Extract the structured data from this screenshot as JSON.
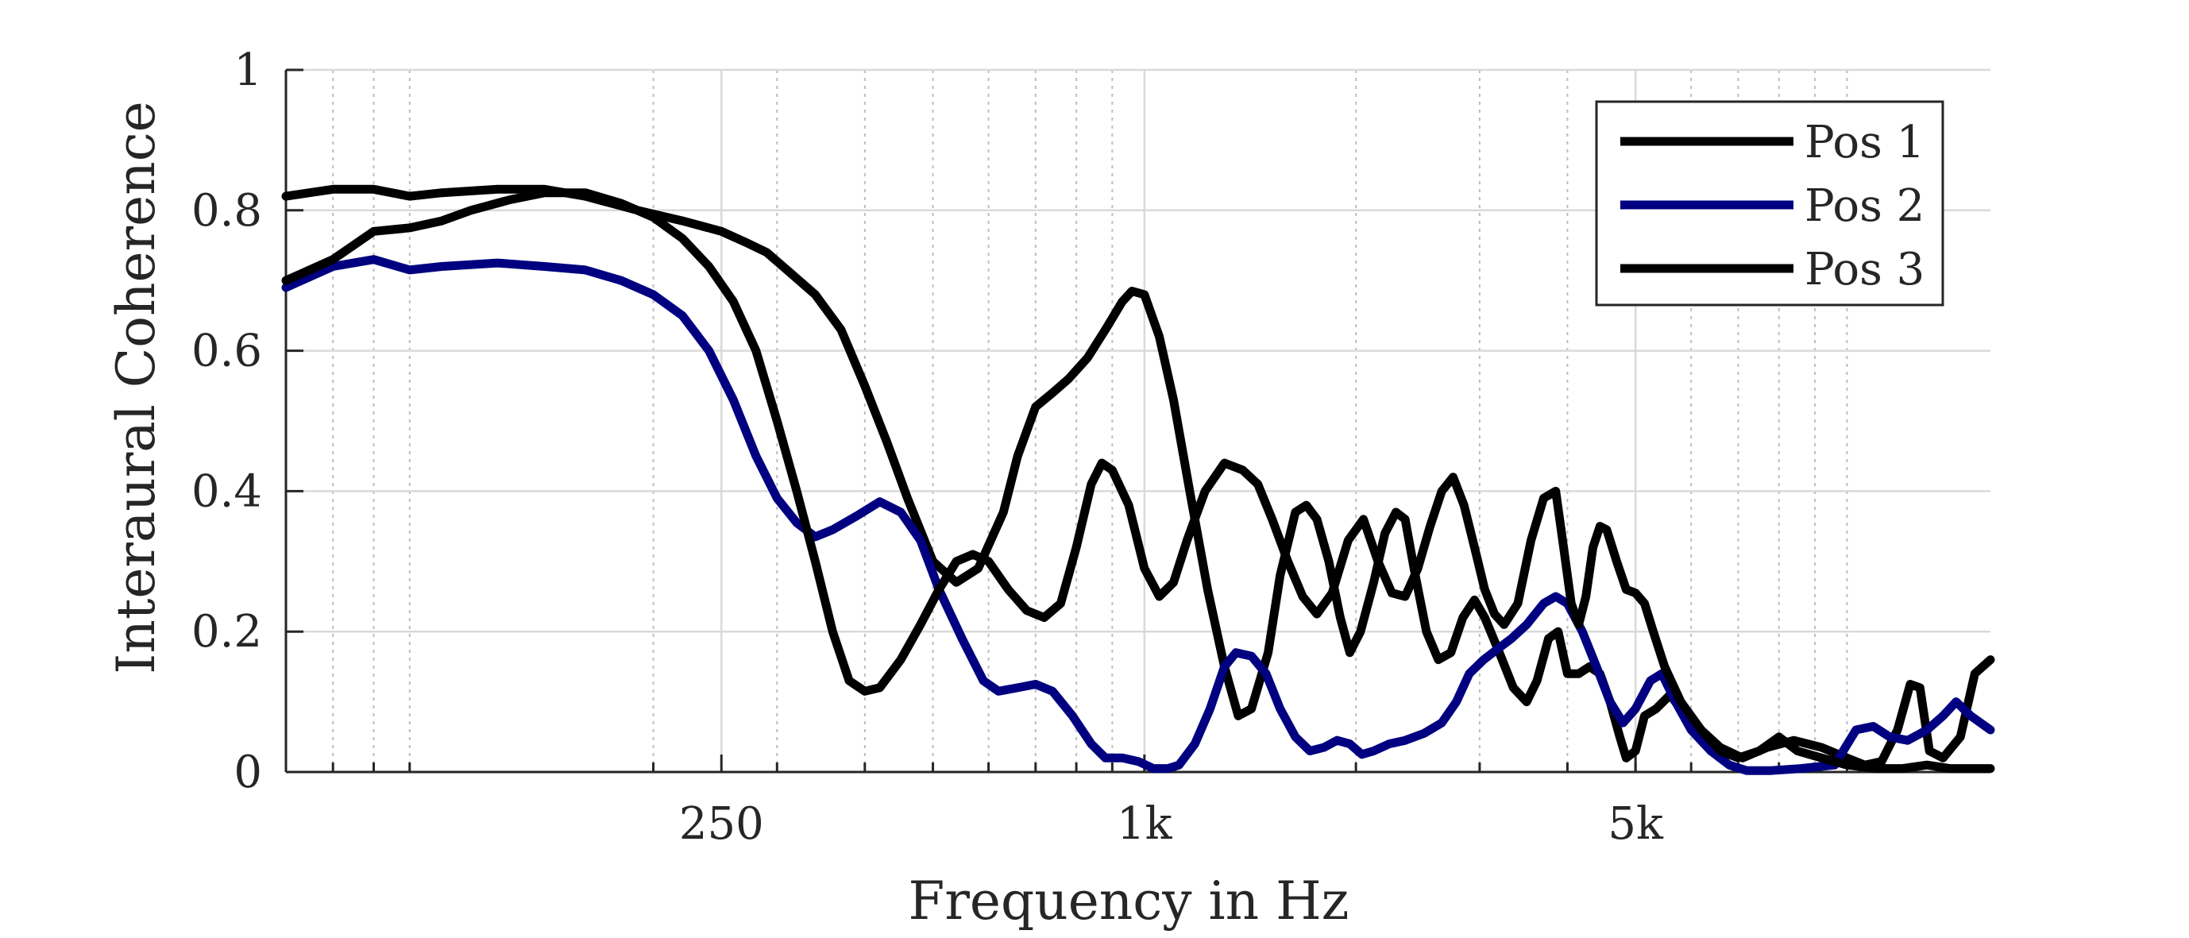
{
  "chart_data": {
    "type": "line",
    "xlabel": "Frequency in Hz",
    "ylabel": "Interaural Coherence",
    "xscale": "log",
    "xlim": [
      60,
      16000
    ],
    "ylim": [
      0,
      1
    ],
    "xticks": [
      250,
      1000,
      5000
    ],
    "xtick_labels": [
      "250",
      "1k",
      "5k"
    ],
    "yticks": [
      0,
      0.2,
      0.4,
      0.6,
      0.8,
      1
    ],
    "ytick_labels": [
      "0",
      "0.2",
      "0.4",
      "0.6",
      "0.8",
      "1"
    ],
    "grid": true,
    "legend_position": "top-right",
    "series": [
      {
        "name": "Pos 1",
        "color": "#000000",
        "points": [
          [
            60,
            0.82
          ],
          [
            70,
            0.83
          ],
          [
            80,
            0.83
          ],
          [
            90,
            0.82
          ],
          [
            100,
            0.825
          ],
          [
            120,
            0.83
          ],
          [
            140,
            0.83
          ],
          [
            160,
            0.82
          ],
          [
            190,
            0.8
          ],
          [
            220,
            0.785
          ],
          [
            250,
            0.77
          ],
          [
            270,
            0.755
          ],
          [
            290,
            0.74
          ],
          [
            310,
            0.715
          ],
          [
            340,
            0.68
          ],
          [
            370,
            0.63
          ],
          [
            400,
            0.55
          ],
          [
            430,
            0.47
          ],
          [
            460,
            0.39
          ],
          [
            500,
            0.3
          ],
          [
            540,
            0.27
          ],
          [
            580,
            0.29
          ],
          [
            630,
            0.37
          ],
          [
            660,
            0.45
          ],
          [
            700,
            0.52
          ],
          [
            740,
            0.54
          ],
          [
            780,
            0.56
          ],
          [
            830,
            0.59
          ],
          [
            880,
            0.63
          ],
          [
            930,
            0.67
          ],
          [
            960,
            0.685
          ],
          [
            1000,
            0.68
          ],
          [
            1050,
            0.62
          ],
          [
            1100,
            0.53
          ],
          [
            1160,
            0.4
          ],
          [
            1230,
            0.26
          ],
          [
            1300,
            0.15
          ],
          [
            1360,
            0.08
          ],
          [
            1420,
            0.09
          ],
          [
            1500,
            0.17
          ],
          [
            1560,
            0.28
          ],
          [
            1640,
            0.37
          ],
          [
            1700,
            0.38
          ],
          [
            1760,
            0.36
          ],
          [
            1830,
            0.3
          ],
          [
            1900,
            0.22
          ],
          [
            1960,
            0.17
          ],
          [
            2030,
            0.2
          ],
          [
            2120,
            0.27
          ],
          [
            2200,
            0.34
          ],
          [
            2280,
            0.37
          ],
          [
            2350,
            0.36
          ],
          [
            2430,
            0.28
          ],
          [
            2520,
            0.2
          ],
          [
            2620,
            0.16
          ],
          [
            2730,
            0.17
          ],
          [
            2840,
            0.22
          ],
          [
            2950,
            0.245
          ],
          [
            3050,
            0.22
          ],
          [
            3200,
            0.17
          ],
          [
            3350,
            0.12
          ],
          [
            3500,
            0.1
          ],
          [
            3620,
            0.13
          ],
          [
            3760,
            0.19
          ],
          [
            3880,
            0.2
          ],
          [
            4000,
            0.14
          ],
          [
            4150,
            0.14
          ],
          [
            4300,
            0.15
          ],
          [
            4450,
            0.14
          ],
          [
            4600,
            0.1
          ],
          [
            4750,
            0.05
          ],
          [
            4850,
            0.02
          ],
          [
            5000,
            0.03
          ],
          [
            5150,
            0.08
          ],
          [
            5350,
            0.09
          ],
          [
            5600,
            0.11
          ],
          [
            5900,
            0.08
          ],
          [
            6200,
            0.06
          ],
          [
            6600,
            0.035
          ],
          [
            7100,
            0.02
          ],
          [
            7700,
            0.035
          ],
          [
            8400,
            0.045
          ],
          [
            9200,
            0.035
          ],
          [
            10000,
            0.02
          ],
          [
            10600,
            0.01
          ],
          [
            11200,
            0.015
          ],
          [
            11800,
            0.06
          ],
          [
            12300,
            0.125
          ],
          [
            12700,
            0.12
          ],
          [
            13100,
            0.03
          ],
          [
            13700,
            0.02
          ],
          [
            14500,
            0.05
          ],
          [
            15200,
            0.14
          ],
          [
            16000,
            0.16
          ]
        ]
      },
      {
        "name": "Pos 2",
        "color": "#000080",
        "points": [
          [
            60,
            0.69
          ],
          [
            70,
            0.72
          ],
          [
            80,
            0.73
          ],
          [
            90,
            0.715
          ],
          [
            100,
            0.72
          ],
          [
            120,
            0.725
          ],
          [
            140,
            0.72
          ],
          [
            160,
            0.715
          ],
          [
            180,
            0.7
          ],
          [
            200,
            0.68
          ],
          [
            220,
            0.65
          ],
          [
            240,
            0.6
          ],
          [
            260,
            0.53
          ],
          [
            280,
            0.45
          ],
          [
            300,
            0.39
          ],
          [
            320,
            0.355
          ],
          [
            340,
            0.335
          ],
          [
            360,
            0.345
          ],
          [
            390,
            0.365
          ],
          [
            420,
            0.385
          ],
          [
            450,
            0.37
          ],
          [
            480,
            0.33
          ],
          [
            510,
            0.26
          ],
          [
            550,
            0.19
          ],
          [
            590,
            0.13
          ],
          [
            620,
            0.115
          ],
          [
            660,
            0.12
          ],
          [
            700,
            0.125
          ],
          [
            740,
            0.115
          ],
          [
            790,
            0.08
          ],
          [
            840,
            0.04
          ],
          [
            880,
            0.02
          ],
          [
            930,
            0.02
          ],
          [
            980,
            0.015
          ],
          [
            1030,
            0.005
          ],
          [
            1080,
            0.005
          ],
          [
            1120,
            0.01
          ],
          [
            1180,
            0.04
          ],
          [
            1240,
            0.09
          ],
          [
            1300,
            0.15
          ],
          [
            1350,
            0.17
          ],
          [
            1420,
            0.165
          ],
          [
            1490,
            0.14
          ],
          [
            1560,
            0.09
          ],
          [
            1640,
            0.05
          ],
          [
            1720,
            0.03
          ],
          [
            1800,
            0.035
          ],
          [
            1880,
            0.045
          ],
          [
            1960,
            0.04
          ],
          [
            2040,
            0.025
          ],
          [
            2120,
            0.03
          ],
          [
            2230,
            0.04
          ],
          [
            2350,
            0.045
          ],
          [
            2500,
            0.055
          ],
          [
            2650,
            0.07
          ],
          [
            2780,
            0.1
          ],
          [
            2900,
            0.14
          ],
          [
            3040,
            0.16
          ],
          [
            3180,
            0.175
          ],
          [
            3330,
            0.19
          ],
          [
            3500,
            0.21
          ],
          [
            3700,
            0.24
          ],
          [
            3850,
            0.25
          ],
          [
            4000,
            0.24
          ],
          [
            4200,
            0.2
          ],
          [
            4400,
            0.15
          ],
          [
            4600,
            0.1
          ],
          [
            4800,
            0.07
          ],
          [
            5000,
            0.09
          ],
          [
            5250,
            0.13
          ],
          [
            5450,
            0.14
          ],
          [
            5700,
            0.1
          ],
          [
            6000,
            0.06
          ],
          [
            6400,
            0.03
          ],
          [
            6800,
            0.01
          ],
          [
            7200,
            0.002
          ],
          [
            7800,
            0.002
          ],
          [
            8600,
            0.005
          ],
          [
            9600,
            0.01
          ],
          [
            10300,
            0.06
          ],
          [
            10900,
            0.065
          ],
          [
            11500,
            0.05
          ],
          [
            12200,
            0.045
          ],
          [
            13000,
            0.06
          ],
          [
            13700,
            0.08
          ],
          [
            14300,
            0.1
          ],
          [
            15000,
            0.08
          ],
          [
            16000,
            0.06
          ]
        ]
      },
      {
        "name": "Pos 3",
        "color": "#000000",
        "points": [
          [
            60,
            0.7
          ],
          [
            70,
            0.73
          ],
          [
            80,
            0.77
          ],
          [
            90,
            0.775
          ],
          [
            100,
            0.785
          ],
          [
            110,
            0.8
          ],
          [
            125,
            0.815
          ],
          [
            140,
            0.825
          ],
          [
            160,
            0.825
          ],
          [
            180,
            0.81
          ],
          [
            200,
            0.79
          ],
          [
            220,
            0.76
          ],
          [
            240,
            0.72
          ],
          [
            260,
            0.67
          ],
          [
            280,
            0.6
          ],
          [
            300,
            0.5
          ],
          [
            320,
            0.4
          ],
          [
            340,
            0.3
          ],
          [
            360,
            0.2
          ],
          [
            380,
            0.13
          ],
          [
            400,
            0.115
          ],
          [
            420,
            0.12
          ],
          [
            450,
            0.16
          ],
          [
            480,
            0.21
          ],
          [
            510,
            0.26
          ],
          [
            540,
            0.3
          ],
          [
            570,
            0.31
          ],
          [
            600,
            0.3
          ],
          [
            640,
            0.26
          ],
          [
            680,
            0.23
          ],
          [
            720,
            0.22
          ],
          [
            760,
            0.24
          ],
          [
            800,
            0.32
          ],
          [
            840,
            0.41
          ],
          [
            870,
            0.44
          ],
          [
            900,
            0.43
          ],
          [
            950,
            0.38
          ],
          [
            1000,
            0.29
          ],
          [
            1050,
            0.25
          ],
          [
            1100,
            0.27
          ],
          [
            1150,
            0.33
          ],
          [
            1220,
            0.4
          ],
          [
            1300,
            0.44
          ],
          [
            1380,
            0.43
          ],
          [
            1450,
            0.41
          ],
          [
            1520,
            0.36
          ],
          [
            1600,
            0.3
          ],
          [
            1680,
            0.25
          ],
          [
            1760,
            0.225
          ],
          [
            1850,
            0.255
          ],
          [
            1950,
            0.33
          ],
          [
            2050,
            0.36
          ],
          [
            2150,
            0.3
          ],
          [
            2250,
            0.255
          ],
          [
            2350,
            0.25
          ],
          [
            2450,
            0.29
          ],
          [
            2550,
            0.35
          ],
          [
            2650,
            0.4
          ],
          [
            2750,
            0.42
          ],
          [
            2850,
            0.38
          ],
          [
            2950,
            0.32
          ],
          [
            3050,
            0.26
          ],
          [
            3150,
            0.225
          ],
          [
            3250,
            0.21
          ],
          [
            3400,
            0.24
          ],
          [
            3550,
            0.33
          ],
          [
            3700,
            0.39
          ],
          [
            3850,
            0.4
          ],
          [
            3950,
            0.32
          ],
          [
            4050,
            0.24
          ],
          [
            4150,
            0.21
          ],
          [
            4250,
            0.25
          ],
          [
            4350,
            0.32
          ],
          [
            4450,
            0.35
          ],
          [
            4550,
            0.345
          ],
          [
            4700,
            0.3
          ],
          [
            4850,
            0.26
          ],
          [
            5000,
            0.255
          ],
          [
            5150,
            0.24
          ],
          [
            5300,
            0.2
          ],
          [
            5500,
            0.15
          ],
          [
            5800,
            0.1
          ],
          [
            6200,
            0.06
          ],
          [
            6600,
            0.03
          ],
          [
            7000,
            0.02
          ],
          [
            7500,
            0.03
          ],
          [
            8000,
            0.05
          ],
          [
            8500,
            0.03
          ],
          [
            9200,
            0.02
          ],
          [
            10000,
            0.01
          ],
          [
            11000,
            0.005
          ],
          [
            12000,
            0.005
          ],
          [
            13000,
            0.01
          ],
          [
            14000,
            0.005
          ],
          [
            15000,
            0.005
          ],
          [
            16000,
            0.005
          ]
        ]
      }
    ]
  }
}
